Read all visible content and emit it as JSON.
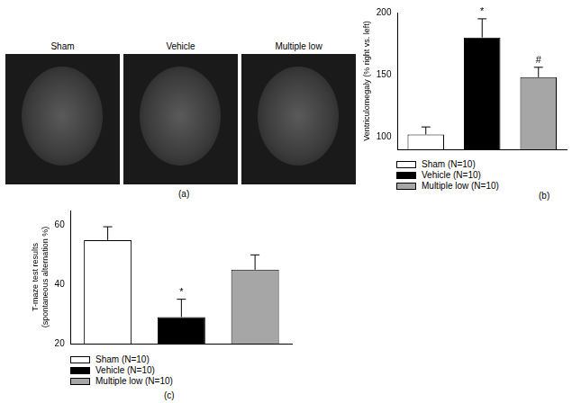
{
  "image_panel": {
    "panel_label": "(a)",
    "images": [
      "Sham",
      "Vehicle",
      "Multiple low"
    ]
  },
  "chart_data": [
    {
      "type": "bar",
      "panel_label": "(b)",
      "y_label": "Ventriculomegaly (% right vs. left)",
      "categories": [
        "Sham (N=10)",
        "Vehicle (N=10)",
        "Multiple low (N=10)"
      ],
      "values": [
        102,
        180,
        148
      ],
      "errors": [
        6,
        15,
        8
      ],
      "colors": [
        "#ffffff",
        "#000000",
        "#a6a6a6"
      ],
      "ylim": [
        90,
        200
      ],
      "yticks": [
        100,
        150,
        200
      ],
      "grid": false,
      "legend": "bottom",
      "tick_labels": "y",
      "annotations": [
        {
          "category": "Vehicle (N=10)",
          "text": "*"
        },
        {
          "category": "Multiple low (N=10)",
          "text": "#"
        }
      ]
    },
    {
      "type": "bar",
      "panel_label": "(c)",
      "y_label": [
        "T-maze test results",
        "(spontaneous alternation %)"
      ],
      "categories": [
        "Sham (N=10)",
        "Vehicle (N=10)",
        "Multiple low (N=10)"
      ],
      "values": [
        55,
        29,
        45
      ],
      "errors": [
        4.5,
        6,
        5
      ],
      "colors": [
        "#ffffff",
        "#000000",
        "#a6a6a6"
      ],
      "ylim": [
        20,
        65
      ],
      "yticks": [
        20,
        40,
        60
      ],
      "grid": false,
      "legend": "bottom",
      "tick_labels": "y",
      "annotations": [
        {
          "category": "Vehicle (N=10)",
          "text": "*"
        }
      ]
    }
  ]
}
